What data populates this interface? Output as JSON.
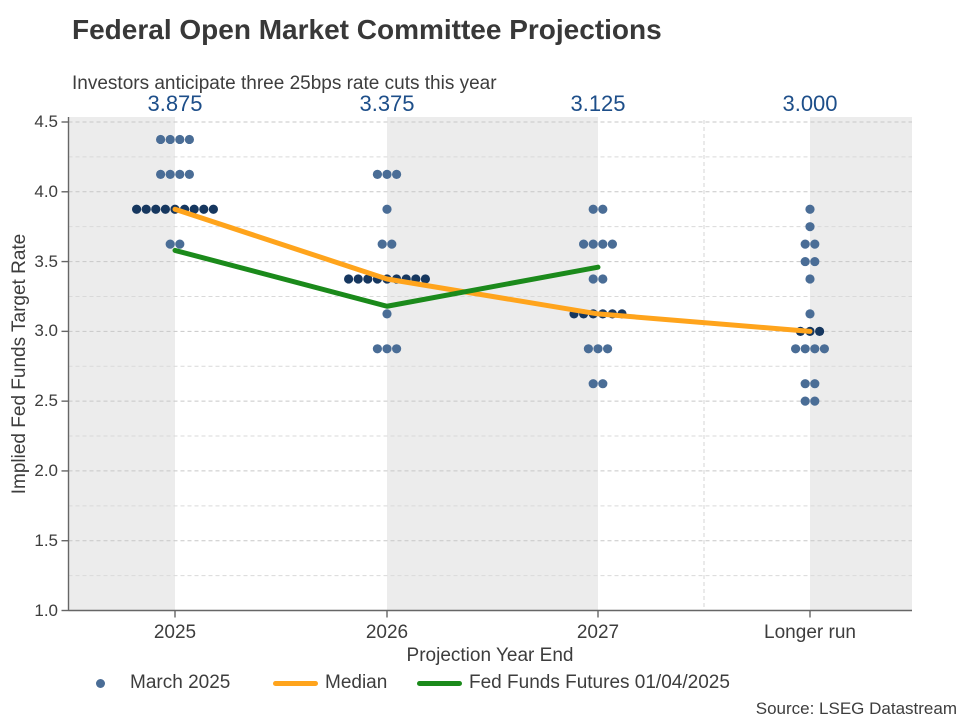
{
  "header": {
    "title": "Federal Open Market Committee Projections",
    "subtitle": "Investors anticipate three 25bps rate cuts this year"
  },
  "source": "Source: LSEG Datastream",
  "colors": {
    "dot": "#4a6d96",
    "dot_median": "#16375f",
    "median_line": "#ffa41c",
    "futures_line": "#1b8a1b",
    "top_label": "#1d4e89",
    "band": "#ececec",
    "grid_minor": "#d9d9d9",
    "grid_major": "#c7c7c7",
    "separator": "#d4d4d4",
    "axis": "#666666",
    "text": "#3d3d3d"
  },
  "chart_data": {
    "type": "scatter",
    "title": "Federal Open Market Committee Projections",
    "subtitle": "Investors anticipate three 25bps rate cuts this year",
    "categories": [
      "2025",
      "2026",
      "2027",
      "Longer run"
    ],
    "xlabel": "Projection Year End",
    "ylabel": "Implied Fed Funds Target Rate",
    "ylim": [
      1.0,
      4.5
    ],
    "ytick_step": 0.5,
    "grid_step": 0.25,
    "grid": "dashed",
    "top_labels": [
      "3.875",
      "3.375",
      "3.125",
      "3.000"
    ],
    "dot_series": {
      "name": "March 2025",
      "points": [
        {
          "category": "2025",
          "rows": [
            {
              "rate": 4.375,
              "count": 4
            },
            {
              "rate": 4.125,
              "count": 4
            },
            {
              "rate": 3.875,
              "count": 9
            },
            {
              "rate": 3.625,
              "count": 2
            }
          ]
        },
        {
          "category": "2026",
          "rows": [
            {
              "rate": 4.125,
              "count": 3
            },
            {
              "rate": 3.875,
              "count": 1
            },
            {
              "rate": 3.625,
              "count": 2
            },
            {
              "rate": 3.375,
              "count": 9
            },
            {
              "rate": 3.125,
              "count": 1
            },
            {
              "rate": 2.875,
              "count": 3
            }
          ]
        },
        {
          "category": "2027",
          "rows": [
            {
              "rate": 3.875,
              "count": 2
            },
            {
              "rate": 3.625,
              "count": 4
            },
            {
              "rate": 3.375,
              "count": 2
            },
            {
              "rate": 3.125,
              "count": 6
            },
            {
              "rate": 2.875,
              "count": 3
            },
            {
              "rate": 2.625,
              "count": 2
            }
          ]
        },
        {
          "category": "Longer run",
          "rows": [
            {
              "rate": 3.875,
              "count": 1
            },
            {
              "rate": 3.75,
              "count": 1
            },
            {
              "rate": 3.625,
              "count": 2
            },
            {
              "rate": 3.5,
              "count": 2
            },
            {
              "rate": 3.375,
              "count": 1
            },
            {
              "rate": 3.125,
              "count": 1
            },
            {
              "rate": 3.0,
              "count": 3
            },
            {
              "rate": 2.875,
              "count": 4
            },
            {
              "rate": 2.625,
              "count": 2
            },
            {
              "rate": 2.5,
              "count": 2
            }
          ]
        }
      ]
    },
    "median_series": {
      "name": "Median",
      "values": [
        3.875,
        3.375,
        3.125,
        3.0
      ]
    },
    "futures_series": {
      "name": "Fed Funds Futures 01/04/2025",
      "x_categories": [
        "2025",
        "2026",
        "2027"
      ],
      "values": [
        3.58,
        3.18,
        3.46
      ]
    },
    "legend": [
      "March 2025",
      "Median",
      "Fed Funds Futures 01/04/2025"
    ],
    "legend_position": "bottom"
  }
}
